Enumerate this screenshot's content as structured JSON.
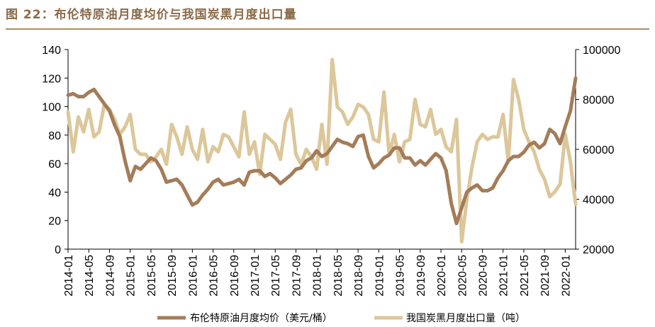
{
  "figure": {
    "label": "图 22：",
    "title": "布伦特原油月度均价与我国炭黑月度出口量"
  },
  "colors": {
    "title": "#8B6A49",
    "brent": "#A47C58",
    "export": "#DCC79A",
    "axis": "#000000"
  },
  "chart_data": {
    "type": "line",
    "x": [
      "2014-01",
      "2014-02",
      "2014-03",
      "2014-04",
      "2014-05",
      "2014-06",
      "2014-07",
      "2014-08",
      "2014-09",
      "2014-10",
      "2014-11",
      "2014-12",
      "2015-01",
      "2015-02",
      "2015-03",
      "2015-04",
      "2015-05",
      "2015-06",
      "2015-07",
      "2015-08",
      "2015-09",
      "2015-10",
      "2015-11",
      "2015-12",
      "2016-01",
      "2016-02",
      "2016-03",
      "2016-04",
      "2016-05",
      "2016-06",
      "2016-07",
      "2016-08",
      "2016-09",
      "2016-10",
      "2016-11",
      "2016-12",
      "2017-01",
      "2017-02",
      "2017-03",
      "2017-04",
      "2017-05",
      "2017-06",
      "2017-07",
      "2017-08",
      "2017-09",
      "2017-10",
      "2017-11",
      "2017-12",
      "2018-01",
      "2018-02",
      "2018-03",
      "2018-04",
      "2018-05",
      "2018-06",
      "2018-07",
      "2018-08",
      "2018-09",
      "2018-10",
      "2018-11",
      "2018-12",
      "2019-01",
      "2019-02",
      "2019-03",
      "2019-04",
      "2019-05",
      "2019-06",
      "2019-07",
      "2019-08",
      "2019-09",
      "2019-10",
      "2019-11",
      "2019-12",
      "2020-01",
      "2020-02",
      "2020-03",
      "2020-04",
      "2020-05",
      "2020-06",
      "2020-07",
      "2020-08",
      "2020-09",
      "2020-10",
      "2020-11",
      "2020-12",
      "2021-01",
      "2021-02",
      "2021-03",
      "2021-04",
      "2021-05",
      "2021-06",
      "2021-07",
      "2021-08",
      "2021-09",
      "2021-10",
      "2021-11",
      "2021-12",
      "2022-01",
      "2022-02",
      "2022-03"
    ],
    "x_tick_labels": [
      "2014-01",
      "2014-05",
      "2014-09",
      "2015-01",
      "2015-05",
      "2015-09",
      "2016-01",
      "2016-05",
      "2016-09",
      "2017-01",
      "2017-05",
      "2017-09",
      "2018-01",
      "2018-05",
      "2018-09",
      "2019-01",
      "2019-05",
      "2019-09",
      "2020-01",
      "2020-05",
      "2020-09",
      "2021-01",
      "2021-05",
      "2021-09",
      "2022-01"
    ],
    "y_left": {
      "ylim": [
        0,
        140
      ],
      "ticks": [
        "0",
        "20",
        "40",
        "60",
        "80",
        "100",
        "120",
        "140"
      ]
    },
    "y_right": {
      "ylim": [
        20000,
        100000
      ],
      "ticks": [
        "20000",
        "40000",
        "60000",
        "80000",
        "100000"
      ]
    },
    "series": [
      {
        "name": "布伦特原油月度均价（美元/桶）",
        "axis": "left",
        "values": [
          108,
          109,
          107,
          107,
          110,
          112,
          107,
          102,
          97,
          87,
          79,
          62,
          48,
          58,
          56,
          60,
          64,
          62,
          56,
          47,
          48,
          49,
          45,
          38,
          31,
          33,
          38,
          42,
          47,
          49,
          45,
          46,
          47,
          49,
          45,
          54,
          55,
          55,
          51,
          53,
          50,
          46,
          49,
          52,
          56,
          57,
          62,
          64,
          69,
          65,
          67,
          72,
          77,
          75,
          74,
          72,
          79,
          80,
          65,
          57,
          60,
          64,
          66,
          71,
          71,
          64,
          64,
          59,
          62,
          59,
          63,
          67,
          64,
          55,
          32,
          18,
          29,
          40,
          43,
          45,
          41,
          41,
          43,
          50,
          55,
          62,
          65,
          65,
          68,
          73,
          75,
          71,
          74,
          84,
          81,
          74,
          86,
          97,
          120
        ]
      },
      {
        "name": "我国炭黑月度出口量（吨）",
        "axis": "right",
        "values": [
          75000,
          59000,
          73000,
          67000,
          76000,
          65000,
          67000,
          78000,
          76000,
          72000,
          66000,
          69000,
          74000,
          60000,
          58000,
          58000,
          55000,
          57000,
          60000,
          54000,
          70000,
          65000,
          58000,
          69000,
          60000,
          56000,
          68000,
          55000,
          61000,
          59000,
          66000,
          65000,
          61000,
          57000,
          75000,
          58000,
          63000,
          50000,
          66000,
          64000,
          62000,
          56000,
          71000,
          76000,
          58000,
          54000,
          60000,
          57000,
          52000,
          70000,
          54000,
          96000,
          77000,
          75000,
          70000,
          73000,
          78000,
          77000,
          74000,
          64000,
          63000,
          83000,
          58000,
          66000,
          55000,
          63000,
          64000,
          80000,
          70000,
          69000,
          76000,
          66000,
          68000,
          61000,
          59000,
          72000,
          23000,
          40000,
          53000,
          63000,
          66000,
          64000,
          65000,
          65000,
          74000,
          55000,
          88000,
          80000,
          68000,
          63000,
          59000,
          52000,
          48000,
          41000,
          43000,
          46000,
          66000,
          55000,
          38000
        ]
      }
    ]
  },
  "legend": {
    "brent": "布伦特原油月度均价（美元/桶）",
    "export": "我国炭黑月度出口量（吨）"
  }
}
